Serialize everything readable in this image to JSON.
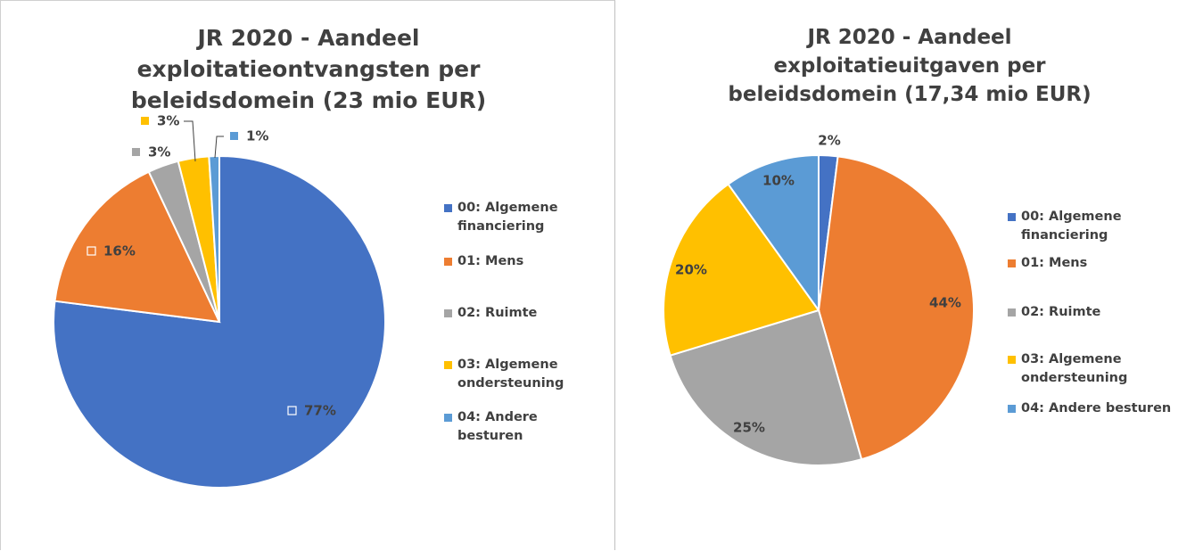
{
  "chart_data": [
    {
      "type": "pie",
      "title": "JR 2020 - Aandeel exploitatieontvangsten per beleidsdomein (23 mio EUR)",
      "categories": [
        "00: Algemene financiering",
        "01: Mens",
        "02: Ruimte",
        "03: Algemene ondersteuning",
        "04: Andere besturen"
      ],
      "values": [
        77,
        16,
        3,
        3,
        1
      ],
      "value_labels": [
        "77%",
        "16%",
        "3%",
        "3%",
        "1%"
      ],
      "colors": [
        "#4472c4",
        "#ed7d31",
        "#a5a5a5",
        "#ffc000",
        "#5b9bd5"
      ],
      "legend": "right"
    },
    {
      "type": "pie",
      "title": "JR 2020 - Aandeel exploitatieuitgaven per beleidsdomein (17,34 mio EUR)",
      "categories": [
        "00: Algemene financiering",
        "01: Mens",
        "02: Ruimte",
        "03: Algemene ondersteuning",
        "04: Andere besturen"
      ],
      "values": [
        2,
        44,
        25,
        20,
        10
      ],
      "value_labels": [
        "2%",
        "44%",
        "25%",
        "20%",
        "10%"
      ],
      "colors": [
        "#4472c4",
        "#ed7d31",
        "#a5a5a5",
        "#ffc000",
        "#5b9bd5"
      ],
      "legend": "right"
    }
  ]
}
